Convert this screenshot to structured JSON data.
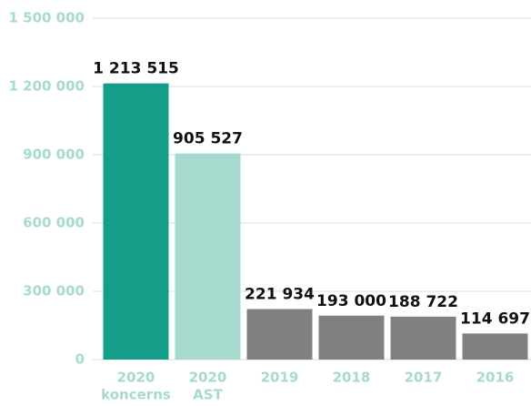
{
  "chart_data": {
    "type": "bar",
    "categories": [
      [
        "2020",
        "koncerns"
      ],
      [
        "2020",
        "AST"
      ],
      [
        "2019"
      ],
      [
        "2018"
      ],
      [
        "2017"
      ],
      [
        "2016"
      ]
    ],
    "values": [
      1213515,
      905527,
      221934,
      193000,
      188722,
      114697
    ],
    "value_labels": [
      "1 213 515",
      "905 527",
      "221 934",
      "193 000",
      "188 722",
      "114 697"
    ],
    "colors": [
      "#149e8a",
      "#a6dace",
      "#808080",
      "#808080",
      "#808080",
      "#808080"
    ],
    "ylim": [
      0,
      1500000
    ],
    "yticks": [
      0,
      {
        "value": 300000,
        "label": "300 000"
      },
      {
        "value": 600000,
        "label": "600 000"
      },
      {
        "value": 900000,
        "label": "900 000"
      },
      {
        "value": 1200000,
        "label": "1 200 000"
      },
      {
        "value": 1500000,
        "label": "1 500 000"
      }
    ],
    "grid": true
  }
}
